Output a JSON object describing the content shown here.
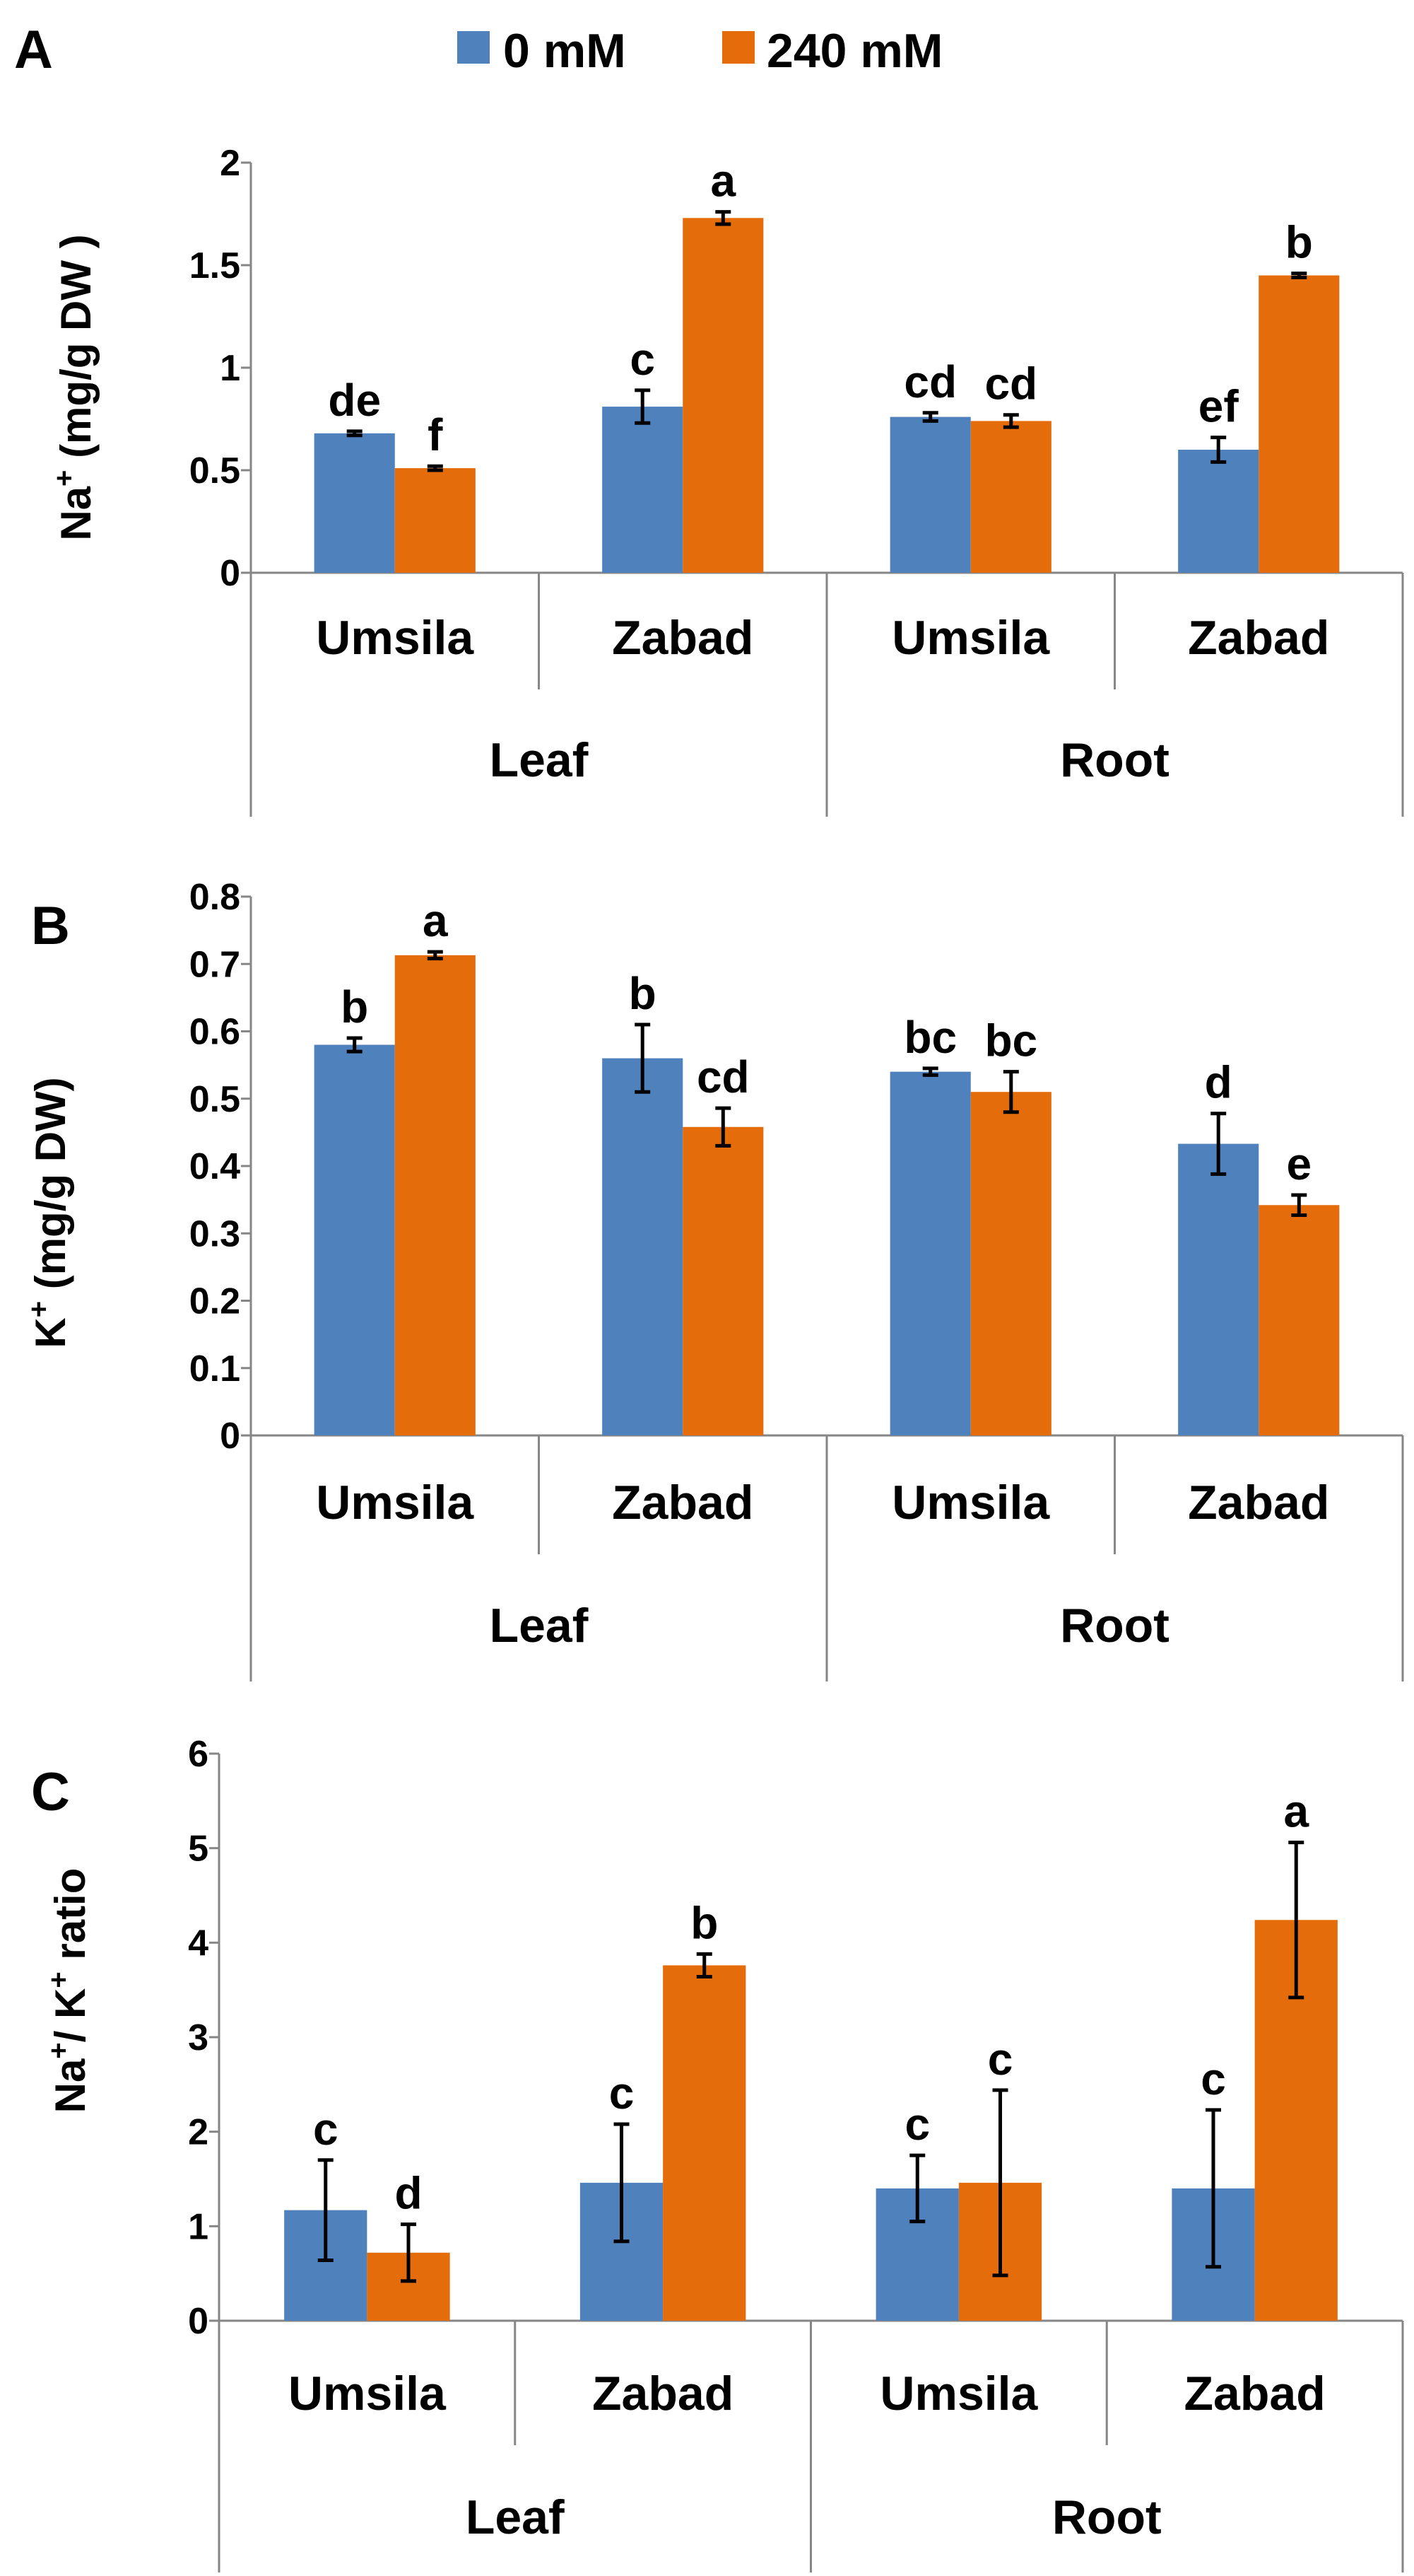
{
  "legend": {
    "series": [
      {
        "name": "0 mM",
        "color": "#4f81bd"
      },
      {
        "name": "240 mM",
        "color": "#e46c0a"
      }
    ]
  },
  "chart_data": [
    {
      "panel": "A",
      "type": "bar",
      "ylabel_main": "Na",
      "ylabel_sup": "+",
      "ylabel_rest": " (mg/g DW )",
      "ylim": [
        0,
        2
      ],
      "yticks": [
        "0",
        "0.5",
        "1",
        "1.5",
        "2"
      ],
      "ytick_values": [
        0,
        0.5,
        1,
        1.5,
        2
      ],
      "categories": [
        "Umsila",
        "Zabad",
        "Umsila",
        "Zabad"
      ],
      "groups": [
        "Leaf",
        "Root"
      ],
      "series": [
        {
          "name": "0 mM",
          "values": [
            0.68,
            0.81,
            0.76,
            0.6
          ],
          "errors": [
            0.01,
            0.08,
            0.02,
            0.06
          ],
          "letters": [
            "de",
            "c",
            "cd",
            "ef"
          ]
        },
        {
          "name": "240 mM",
          "values": [
            0.51,
            1.73,
            0.74,
            1.45
          ],
          "errors": [
            0.01,
            0.03,
            0.03,
            0.01
          ],
          "letters": [
            "f",
            "a",
            "cd",
            "b"
          ]
        }
      ]
    },
    {
      "panel": "B",
      "type": "bar",
      "ylabel_main": "K",
      "ylabel_sup": "+",
      "ylabel_rest": "  (mg/g DW)",
      "ylim": [
        0,
        0.8
      ],
      "yticks": [
        "0",
        "0.1",
        "0.2",
        "0.3",
        "0.4",
        "0.5",
        "0.6",
        "0.7",
        "0.8"
      ],
      "ytick_values": [
        0,
        0.1,
        0.2,
        0.3,
        0.4,
        0.5,
        0.6,
        0.7,
        0.8
      ],
      "categories": [
        "Umsila",
        "Zabad",
        "Umsila",
        "Zabad"
      ],
      "groups": [
        "Leaf",
        "Root"
      ],
      "series": [
        {
          "name": "0 mM",
          "values": [
            0.58,
            0.56,
            0.54,
            0.433
          ],
          "errors": [
            0.01,
            0.05,
            0.005,
            0.045
          ],
          "letters": [
            "b",
            "b",
            "bc",
            "d"
          ]
        },
        {
          "name": "240 mM",
          "values": [
            0.713,
            0.458,
            0.51,
            0.342
          ],
          "errors": [
            0.005,
            0.028,
            0.03,
            0.015
          ],
          "letters": [
            "a",
            "cd",
            "bc",
            "e"
          ]
        }
      ]
    },
    {
      "panel": "C",
      "type": "bar",
      "ylabel_main": "Na",
      "ylabel_sup": "+",
      "ylabel_rest": "/ K",
      "ylabel_sup2": "+",
      "ylabel_rest2": " ratio",
      "ylim": [
        0,
        6
      ],
      "yticks": [
        "0",
        "1",
        "2",
        "3",
        "4",
        "5",
        "6"
      ],
      "ytick_values": [
        0,
        1,
        2,
        3,
        4,
        5,
        6
      ],
      "categories": [
        "Umsila",
        "Zabad",
        "Umsila",
        "Zabad"
      ],
      "groups": [
        "Leaf",
        "Root"
      ],
      "series": [
        {
          "name": "0 mM",
          "values": [
            1.17,
            1.46,
            1.4,
            1.4
          ],
          "errors": [
            0.53,
            0.62,
            0.35,
            0.83
          ],
          "letters": [
            "c",
            "c",
            "c",
            "c"
          ]
        },
        {
          "name": "240 mM",
          "values": [
            0.72,
            3.76,
            1.46,
            4.24
          ],
          "errors": [
            0.3,
            0.12,
            0.98,
            0.82
          ],
          "letters": [
            "d",
            "b",
            "c",
            "a"
          ]
        }
      ]
    }
  ]
}
